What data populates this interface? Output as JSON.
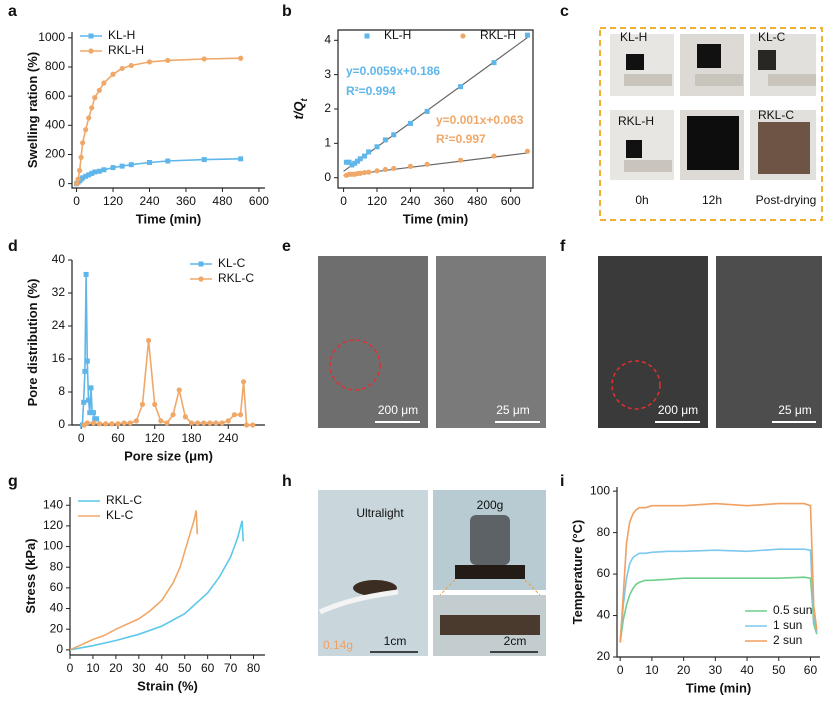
{
  "panel_labels": [
    "a",
    "b",
    "c",
    "d",
    "e",
    "f",
    "g",
    "h",
    "i"
  ],
  "chart_data": [
    {
      "type": "line",
      "x_label": "Time (min)",
      "y_label": "Swelling ration (%)",
      "xlim": [
        -15,
        620
      ],
      "ylim": [
        -30,
        1040
      ],
      "xticks": [
        0,
        120,
        240,
        360,
        480,
        600
      ],
      "yticks": [
        0,
        200,
        400,
        600,
        800,
        1000
      ],
      "legend": "upper left",
      "series": [
        {
          "name": "KL-H",
          "color": "#5fb6ea",
          "marker": "square",
          "x": [
            0,
            5,
            10,
            15,
            20,
            30,
            40,
            50,
            60,
            75,
            90,
            120,
            150,
            180,
            240,
            300,
            420,
            540
          ],
          "values": [
            0,
            10,
            20,
            30,
            40,
            50,
            60,
            70,
            80,
            85,
            95,
            110,
            120,
            130,
            145,
            155,
            165,
            170
          ]
        },
        {
          "name": "RKL-H",
          "color": "#f0a868",
          "marker": "circle",
          "x": [
            0,
            5,
            10,
            15,
            20,
            30,
            40,
            50,
            60,
            75,
            90,
            120,
            150,
            180,
            240,
            300,
            420,
            540
          ],
          "values": [
            0,
            30,
            90,
            180,
            280,
            370,
            450,
            520,
            590,
            640,
            690,
            750,
            790,
            810,
            835,
            845,
            855,
            860
          ]
        }
      ]
    },
    {
      "type": "scatter",
      "x_label": "Time (min)",
      "y_label": "t/Q",
      "y_label_subscript": "t",
      "xlim": [
        -20,
        680
      ],
      "ylim": [
        -0.3,
        4.3
      ],
      "xticks": [
        0,
        120,
        240,
        360,
        480,
        600
      ],
      "yticks": [
        0,
        1,
        2,
        3,
        4
      ],
      "legend": "upper left",
      "legend_layout": "horizontal",
      "frame": true,
      "series": [
        {
          "name": "KL-H",
          "color": "#5fb6ea",
          "marker": "square",
          "x": [
            10,
            20,
            30,
            40,
            50,
            60,
            75,
            90,
            120,
            150,
            180,
            240,
            300,
            420,
            540,
            660
          ],
          "values": [
            0.45,
            0.45,
            0.37,
            0.42,
            0.48,
            0.55,
            0.63,
            0.75,
            0.9,
            1.1,
            1.25,
            1.58,
            1.93,
            2.65,
            3.35,
            4.15
          ]
        },
        {
          "name": "RKL-H",
          "color": "#f0a868",
          "marker": "circle",
          "x": [
            10,
            20,
            30,
            40,
            50,
            60,
            75,
            90,
            120,
            150,
            180,
            240,
            300,
            420,
            540,
            660
          ],
          "values": [
            0.07,
            0.1,
            0.1,
            0.1,
            0.12,
            0.13,
            0.15,
            0.16,
            0.2,
            0.24,
            0.27,
            0.33,
            0.39,
            0.51,
            0.63,
            0.77
          ]
        }
      ],
      "fit_color": "#666666",
      "fit_lines": [
        {
          "x": [
            0,
            660
          ],
          "values": [
            0.186,
            4.08
          ]
        },
        {
          "x": [
            0,
            660
          ],
          "values": [
            0.063,
            0.72
          ]
        }
      ],
      "annotations": [
        {
          "text": "y=0.0059x+0.186",
          "color": "#5fb6ea"
        },
        {
          "text": "R²=0.994",
          "color": "#5fb6ea"
        },
        {
          "text": "y=0.001x+0.063",
          "color": "#f0a868"
        },
        {
          "text": "R²=0.997",
          "color": "#f0a868"
        }
      ]
    },
    {
      "type": "line",
      "x_label": "Pore size (μm)",
      "y_label": "Pore distribution (%)",
      "xlim": [
        -15,
        300
      ],
      "ylim": [
        0,
        40
      ],
      "xticks": [
        0,
        60,
        120,
        180,
        240
      ],
      "yticks": [
        0,
        8,
        16,
        24,
        32,
        40
      ],
      "legend": "upper right",
      "series": [
        {
          "name": "KL-C",
          "color": "#5fb6ea",
          "marker": "square",
          "x": [
            2,
            4,
            6,
            8,
            10,
            12,
            14,
            16,
            18,
            20,
            22,
            25
          ],
          "values": [
            0,
            5.5,
            13,
            36.5,
            15.5,
            6,
            3,
            9,
            3,
            3,
            1.5,
            1.5
          ]
        },
        {
          "name": "RKL-C",
          "color": "#f0a868",
          "marker": "circle",
          "x": [
            5,
            10,
            20,
            30,
            40,
            50,
            60,
            70,
            80,
            90,
            100,
            110,
            120,
            130,
            140,
            150,
            160,
            170,
            180,
            190,
            200,
            210,
            220,
            230,
            240,
            250,
            260,
            265,
            270,
            280
          ],
          "values": [
            0,
            0.5,
            0.5,
            0.3,
            0.3,
            0.3,
            0.3,
            0.5,
            0.5,
            1,
            5,
            20.5,
            5,
            1,
            0.5,
            2.5,
            8.5,
            2,
            0.5,
            0.5,
            0.5,
            0.5,
            0.5,
            0.5,
            1,
            2.5,
            2.5,
            10.5,
            0,
            0
          ]
        }
      ]
    },
    {
      "type": "line",
      "x_label": "Strain (%)",
      "y_label": "Stress (kPa)",
      "xlim": [
        0,
        85
      ],
      "ylim": [
        -5,
        148
      ],
      "xticks": [
        0,
        10,
        20,
        30,
        40,
        50,
        60,
        70,
        80
      ],
      "yticks": [
        0,
        20,
        40,
        60,
        80,
        100,
        120,
        140
      ],
      "legend": "upper left",
      "series": [
        {
          "name": "RKL-C",
          "color": "#5cc8ea",
          "x": [
            0,
            10,
            20,
            30,
            40,
            50,
            60,
            65,
            70,
            73,
            75,
            75.5
          ],
          "values": [
            0,
            4,
            9,
            15,
            23,
            35,
            55,
            70,
            90,
            108,
            125,
            105
          ]
        },
        {
          "name": "KL-C",
          "color": "#f0a868",
          "x": [
            0,
            5,
            10,
            15,
            20,
            25,
            30,
            35,
            40,
            45,
            48,
            50,
            52,
            54,
            55,
            55.5
          ],
          "values": [
            0,
            5,
            10,
            14,
            20,
            25,
            30,
            38,
            48,
            65,
            80,
            95,
            110,
            125,
            135,
            112
          ]
        }
      ]
    },
    {
      "type": "line",
      "x_label": "Time (min)",
      "y_label": "Temperature (°C)",
      "xlim": [
        -1,
        63
      ],
      "ylim": [
        20,
        102
      ],
      "xticks": [
        0,
        10,
        20,
        30,
        40,
        50,
        60
      ],
      "yticks": [
        20,
        40,
        60,
        80,
        100
      ],
      "legend": "lower right",
      "series": [
        {
          "name": "0.5 sun",
          "color": "#6fcf8a",
          "x": [
            0,
            1,
            2,
            3,
            4,
            5,
            6,
            8,
            10,
            15,
            20,
            30,
            40,
            50,
            58,
            60,
            60.5,
            61,
            62
          ],
          "values": [
            27,
            38,
            45,
            50,
            53,
            55,
            56,
            57,
            57,
            57.5,
            58,
            58,
            58,
            58,
            58.5,
            58,
            48,
            36,
            31
          ]
        },
        {
          "name": "1 sun",
          "color": "#7cc8ef",
          "x": [
            0,
            1,
            2,
            3,
            4,
            5,
            6,
            8,
            10,
            15,
            20,
            30,
            40,
            50,
            58,
            60,
            60.5,
            61,
            62
          ],
          "values": [
            27,
            45,
            58,
            65,
            68,
            69,
            70,
            70,
            70.5,
            71,
            71,
            71.5,
            71,
            72,
            72,
            71.5,
            55,
            40,
            32
          ]
        },
        {
          "name": "2 sun",
          "color": "#f0a060",
          "x": [
            0,
            1,
            2,
            3,
            4,
            5,
            6,
            8,
            10,
            15,
            20,
            30,
            40,
            50,
            58,
            60,
            60.5,
            61,
            62
          ],
          "values": [
            27,
            50,
            75,
            85,
            89,
            91,
            92,
            92,
            93,
            93,
            93,
            94,
            93,
            94,
            94,
            93,
            70,
            45,
            33
          ]
        }
      ]
    }
  ],
  "photos": {
    "c": {
      "labels": [
        "KL-H",
        "KL-C",
        "RKL-H",
        "RKL-C"
      ],
      "columns": [
        "0h",
        "12h",
        "Post-drying"
      ]
    },
    "e": {
      "scale_bars": [
        "200 μm",
        "25 μm"
      ]
    },
    "f": {
      "scale_bars": [
        "200 μm",
        "25 μm"
      ]
    },
    "h": {
      "labels": [
        "Ultralight",
        "200g",
        "1cm",
        "2cm",
        "0.14g"
      ]
    }
  }
}
